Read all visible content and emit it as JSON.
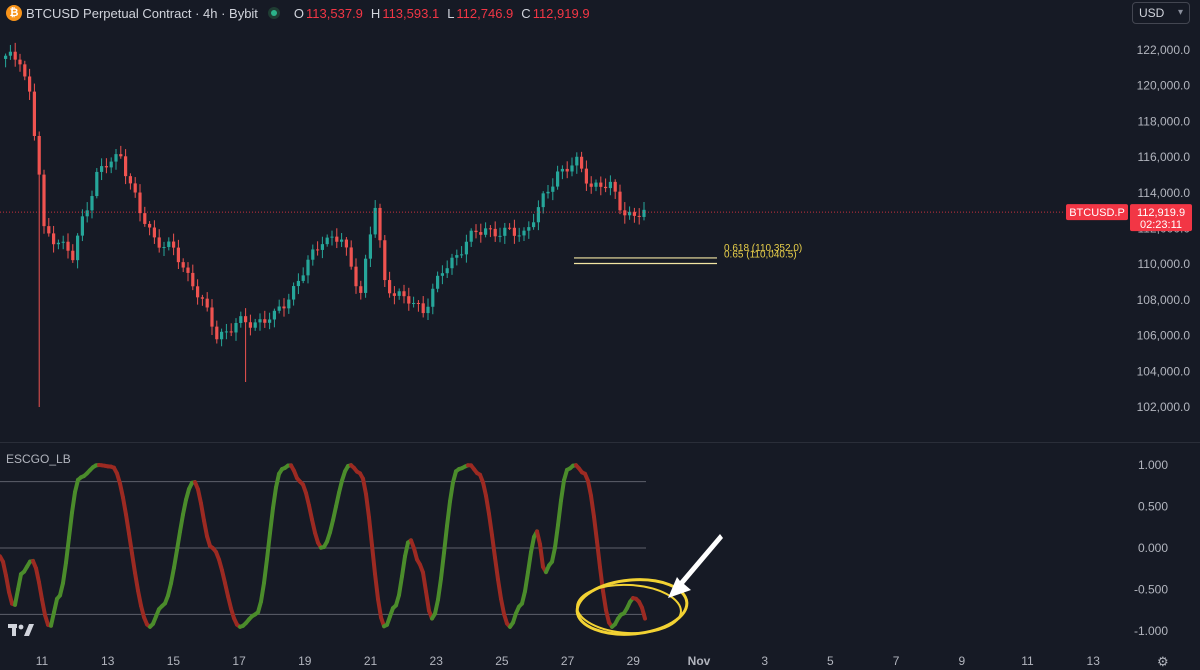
{
  "header": {
    "coin_glyph": "₿",
    "symbol_title": "BTCUSD Perpetual Contract · 4h · Bybit",
    "open_label": "O",
    "open_value": "113,537.9",
    "high_label": "H",
    "high_value": "113,593.1",
    "low_label": "L",
    "low_value": "112,746.9",
    "close_label": "C",
    "close_value": "112,919.9"
  },
  "currency": {
    "selected": "USD"
  },
  "price_axis": {
    "ticks": [
      "122,000.0",
      "120,000.0",
      "118,000.0",
      "116,000.0",
      "114,000.0",
      "112,000.0",
      "110,000.0",
      "108,000.0",
      "106,000.0",
      "104,000.0",
      "102,000.0"
    ],
    "last_price_symbol": "BTCUSD.P",
    "last_price": "112,919.9",
    "countdown": "02:23:11"
  },
  "fib_levels": [
    {
      "label": "0.618 (110,352.0)",
      "price": 110352.0
    },
    {
      "label": "0.65 (110,040.5)",
      "price": 110040.5
    }
  ],
  "indicator": {
    "name": "ESCGO_LB",
    "ticks": [
      "1.000",
      "0.500",
      "0.000",
      "-0.500",
      "-1.000"
    ]
  },
  "time_axis": {
    "labels": [
      "11",
      "13",
      "15",
      "17",
      "19",
      "21",
      "23",
      "25",
      "27",
      "29",
      "Nov",
      "3",
      "5",
      "7",
      "9",
      "11",
      "13"
    ]
  },
  "colors": {
    "up": "#26a69a",
    "down": "#ef5350",
    "background": "#161a25",
    "osc_up": "#4b8c2b",
    "osc_down": "#9c2a22",
    "highlight": "#f2d233",
    "last_price": "#f23645"
  },
  "icons": {
    "settings": "gear-icon",
    "logo": "tradingview-logo"
  }
}
